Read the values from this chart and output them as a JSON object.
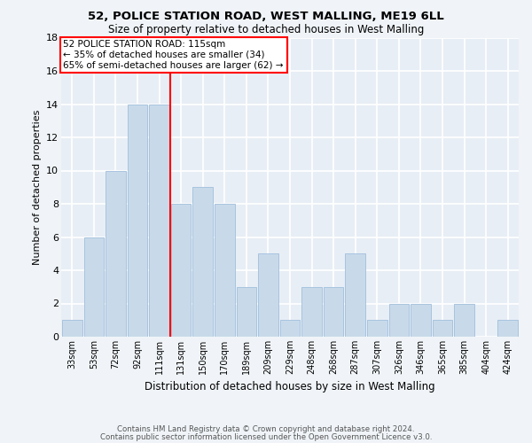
{
  "title1": "52, POLICE STATION ROAD, WEST MALLING, ME19 6LL",
  "title2": "Size of property relative to detached houses in West Malling",
  "xlabel": "Distribution of detached houses by size in West Malling",
  "ylabel": "Number of detached properties",
  "categories": [
    "33sqm",
    "53sqm",
    "72sqm",
    "92sqm",
    "111sqm",
    "131sqm",
    "150sqm",
    "170sqm",
    "189sqm",
    "209sqm",
    "229sqm",
    "248sqm",
    "268sqm",
    "287sqm",
    "307sqm",
    "326sqm",
    "346sqm",
    "365sqm",
    "385sqm",
    "404sqm",
    "424sqm"
  ],
  "values": [
    1,
    6,
    10,
    14,
    14,
    8,
    9,
    8,
    3,
    5,
    1,
    3,
    3,
    5,
    1,
    2,
    2,
    1,
    2,
    0,
    1
  ],
  "bar_color": "#c8daea",
  "bar_edgecolor": "#a0bedc",
  "ylim": [
    0,
    18
  ],
  "yticks": [
    0,
    2,
    4,
    6,
    8,
    10,
    12,
    14,
    16,
    18
  ],
  "vline_color": "red",
  "vline_x": 4.5,
  "annotation_text": "52 POLICE STATION ROAD: 115sqm\n← 35% of detached houses are smaller (34)\n65% of semi-detached houses are larger (62) →",
  "footer1": "Contains HM Land Registry data © Crown copyright and database right 2024.",
  "footer2": "Contains public sector information licensed under the Open Government Licence v3.0.",
  "bg_color": "#f0f4f8",
  "plot_bg_color": "#e8eef5"
}
